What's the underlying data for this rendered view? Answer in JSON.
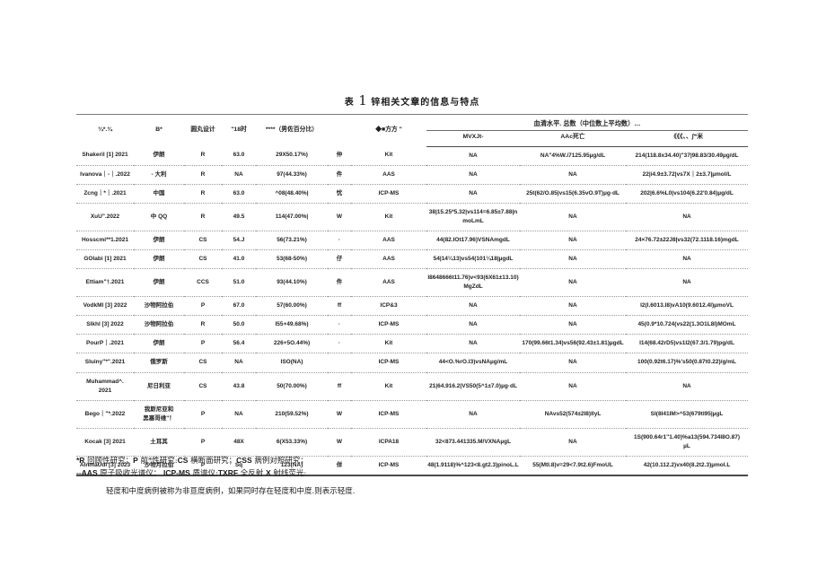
{
  "title": {
    "prefix": "表",
    "number": "1",
    "suffix": "锌相关文章的信息与特点"
  },
  "colors": {
    "text": "#1c1c1c",
    "major_rule": "#4a4a4a",
    "row_rule": "#9a9a9a",
    "background": "#ffffff"
  },
  "table": {
    "headers": {
      "author": "¾*.¾",
      "country": "B*",
      "design": "圆丸设计",
      "age": "\"18时",
      "gender": "****（男佐百分比）",
      "severity": "",
      "method": "◆■方方 \"",
      "serum_group": "血清水平. 总数（中位数上平均数）…",
      "serum1": "MVXJt-",
      "serum2": "AAc死亡",
      "serum3": "《《《、、∫⁼米"
    },
    "rows": [
      {
        "author": "Shakeril [1] 2021",
        "country": "伊朗",
        "design": "R",
        "age": "63.0",
        "gender": "29X50.17%)",
        "severity": "仲",
        "method": "Kit",
        "serum1": "NA",
        "serum2": "NA\"4%W.i7125.95µg/dL",
        "serum3": "214(118.8x34.40)\"37|98.83/30.49µg/dL"
      },
      {
        "author": "Ivanova｜-｜.2022",
        "country": "- 大利",
        "design": "R",
        "age": "NA",
        "gender": "97(44.33%)",
        "severity": "件",
        "method": "AAS",
        "serum1": "NA",
        "serum2": "NA",
        "serum3": "22|i4.9±3.72|vs7X｜2±3.7|µmol/L"
      },
      {
        "author": "Zcng｜*｜.2021",
        "country": "中国",
        "design": "R",
        "age": "63.0",
        "gender": "^08(48.40%|",
        "severity": "忧",
        "method": "ICP-MS",
        "serum1": "NA",
        "serum2": "25t(62/O.85|vs15(6.35vO.9T)µg·dL",
        "serum3": "202|6.6%L0|vs104(6.22'0.84)µg/dL"
      },
      {
        "author": "XuU\".2022",
        "country": "中 QQ",
        "design": "R",
        "age": "49.5",
        "gender": "114(47.00%|",
        "severity": "W",
        "method": "Kit",
        "serum1": "38|15.25*5.32|vs114=6.85±7.88|nmoLmL",
        "serum2": "NA",
        "serum3": "NA"
      },
      {
        "author": "Hosscmi**1.2021",
        "country": "伊朗",
        "design": "CS",
        "age": "54.J",
        "gender": "56(73.21%)",
        "severity": "·",
        "method": "AAS",
        "serum1": "44(82.IOt17.96)VSNAmgdL",
        "serum2": "NA",
        "serum3": "24×76.72±22J8|vs32(72.1118.16)mgdL"
      },
      {
        "author": "GOlabi [1] 2021",
        "country": "伊朗",
        "design": "CS",
        "age": "41.0",
        "gender": "53(68-50%)",
        "severity": "仔",
        "method": "AAS",
        "serum1": "54|14¼13)vs54(101¼18|µgdL",
        "serum2": "NA",
        "serum3": "NA"
      },
      {
        "author": "Ettiam\"†.2021",
        "country": "伊朗",
        "design": "CCS",
        "age": "51.0",
        "gender": "93(44.10%)",
        "severity": "件",
        "method": "AAS",
        "serum1": "I8648666t11.76)v<93(6X61±13.10)\nMgZdL",
        "serum2": "NA",
        "serum3": "NA"
      },
      {
        "author": "VodkMl [3] 2022",
        "country": "沙物阿拉伯",
        "design": "P",
        "age": "67.0",
        "gender": "57(60.00%)",
        "severity": "ff",
        "method": "ICP&3",
        "serum1": "NA",
        "serum2": "NA",
        "serum3": "I2(I.6013.I8)vA10(9.6012.4I)µmoVL"
      },
      {
        "author": "Slkhl [3] 2022",
        "country": "沙物阿拉伯",
        "design": "R",
        "age": "50.0",
        "gender": "I55+49.68%)",
        "severity": "·",
        "method": "ICP-MS",
        "serum1": "NA",
        "serum2": "NA",
        "serum3": "45(0.9*10.724(vs22(1.3O1L8I)MOmL"
      },
      {
        "author": "PourP｜.2021",
        "country": "伊朗",
        "design": "P",
        "age": "56.4",
        "gender": "226+5O.44%)",
        "severity": "·",
        "method": "Kit",
        "serum1": "NA",
        "serum2": "170(99.66t1.34)vs56(92.43±1.81)µgdL",
        "serum3": "I14(68.42rD5)vs1I2(67.3/1.79)pg/dL"
      },
      {
        "author": "Sluiny\"*\".2021",
        "country": "俄罗斯",
        "design": "CS",
        "age": "NA",
        "gender": "ISO(NA)",
        "severity": "",
        "method": "ICP-MS",
        "serum1": "44<O.%rO.I3)vsNAµg/mL",
        "serum2": "NA",
        "serum3": "100(0.92t6.17)%'s50(0.87t0.22)/g/mL"
      },
      {
        "author": "Muhammad^.\n2021",
        "country": "尼日利亚",
        "design": "CS",
        "age": "43.8",
        "gender": "50(70.00%)",
        "severity": "ff",
        "method": "Kit",
        "serum1": "21|64.916.2|VS50(5^1±7.0)µg·dL",
        "serum2": "NA",
        "serum3": "NA"
      },
      {
        "author": "Bego｜\"*.2022",
        "country": "我斯尼亚和\n黑塞哥维\"！",
        "design": "P",
        "age": "NA",
        "gender": "210(59.52%)",
        "severity": "W",
        "method": "ICP-MS",
        "serum1": "NA",
        "serum2": "NAvs52(574±2I8)IlyL",
        "serum3": "SI(8I41IM>^53(679tI95|µgL"
      },
      {
        "author": "Kocak [3] 2021",
        "country": "土耳其",
        "design": "P",
        "age": "48X",
        "gender": "6(X53.33%)",
        "severity": "W",
        "method": "ICPA18",
        "serum1": "32<873.441335.M/VXNAµgL",
        "serum2": "NA",
        "serum3": "1S(900.64r1\"1.40)%a13(594.734I8O.87)\nµL"
      },
      {
        "author": "AlnmaUdi [3] 2023",
        "country": "沙物月拉伯",
        "design": "P",
        "age": "Sq",
        "gender": "123(NA)",
        "severity": "佯",
        "method": "ICP-MS",
        "serum1": "48(1.9118)%^123<8.gt2.3)pinoL.L",
        "serum2": "55(MtI.8)v=29<7.9t2.6)FmoUL",
        "serum3": "42(10.112.2)vx40(8.2t2.3)µmoI.L"
      }
    ]
  },
  "footnotes": [
    [
      {
        "t": "*R",
        "b": 1
      },
      {
        "t": " 回顾性研究；",
        "b": 0
      },
      {
        "t": "P",
        "b": 1
      },
      {
        "t": " 前*性研究:",
        "b": 0
      },
      {
        "t": "CS",
        "b": 1
      },
      {
        "t": " 横断面研究；",
        "b": 0
      },
      {
        "t": "CSS",
        "b": 1
      },
      {
        "t": " 病例对照研究；",
        "b": 0
      }
    ],
    [
      {
        "t": "--AAS",
        "b": 1
      },
      {
        "t": " 原子吸收光谱仪： ",
        "b": 0
      },
      {
        "t": "ICP-MS",
        "b": 1
      },
      {
        "t": " 质谱仪:",
        "b": 0
      },
      {
        "t": "TXRF",
        "b": 1
      },
      {
        "t": " 全反射 ",
        "b": 0
      },
      {
        "t": "X",
        "b": 1
      },
      {
        "t": " 射线荧光:",
        "b": 0
      }
    ],
    [
      {
        "t": "轻度和中度病例被称为非亘度病例，如果同时存在轻度和中度.则表示轻度.",
        "b": 0
      }
    ]
  ]
}
